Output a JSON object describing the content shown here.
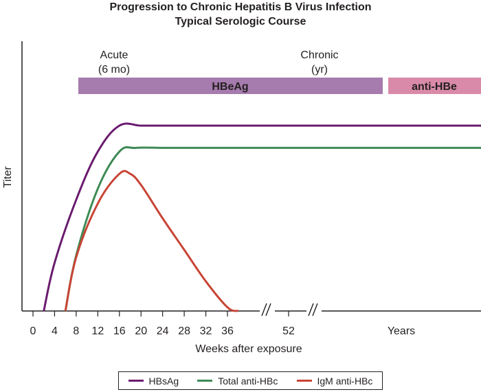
{
  "chart_data": {
    "type": "line",
    "title": "Progression to Chronic Hepatitis B Virus Infection",
    "subtitle": "Typical Serologic Course",
    "xlabel": "Weeks after exposure",
    "ylabel": "Titer",
    "x_ticks": [
      "0",
      "4",
      "8",
      "12",
      "16",
      "20",
      "24",
      "28",
      "32",
      "36",
      "52",
      "Years"
    ],
    "phases": [
      {
        "name": "Acute",
        "sub": "(6 mo)"
      },
      {
        "name": "Chronic",
        "sub": "(yr)"
      }
    ],
    "bars": [
      {
        "label": "HBeAg",
        "color": "#a67bad"
      },
      {
        "label": "anti-HBe",
        "color": "#d98aa8"
      }
    ],
    "series": [
      {
        "name": "HBsAg",
        "color": "#6a1b6e",
        "points": [
          [
            2,
            0
          ],
          [
            4,
            26
          ],
          [
            8,
            60
          ],
          [
            12,
            86
          ],
          [
            16,
            100
          ],
          [
            20,
            100
          ],
          [
            24,
            100
          ],
          [
            28,
            100
          ],
          [
            32,
            100
          ],
          [
            36,
            100
          ],
          [
            52,
            100
          ],
          [
            "Years",
            100
          ]
        ]
      },
      {
        "name": "Total anti-HBc",
        "color": "#3d8a55",
        "points": [
          [
            6,
            0
          ],
          [
            8,
            30
          ],
          [
            12,
            66
          ],
          [
            16,
            86
          ],
          [
            19,
            88
          ],
          [
            24,
            88
          ],
          [
            28,
            88
          ],
          [
            32,
            88
          ],
          [
            36,
            88
          ],
          [
            52,
            88
          ],
          [
            "Years",
            88
          ]
        ]
      },
      {
        "name": "IgM anti-HBc",
        "color": "#c84435",
        "points": [
          [
            6,
            0
          ],
          [
            8,
            29
          ],
          [
            12,
            58
          ],
          [
            16,
            74
          ],
          [
            18,
            74
          ],
          [
            20,
            68
          ],
          [
            24,
            50
          ],
          [
            28,
            33
          ],
          [
            32,
            16
          ],
          [
            36,
            2
          ],
          [
            38,
            0
          ]
        ]
      }
    ]
  }
}
